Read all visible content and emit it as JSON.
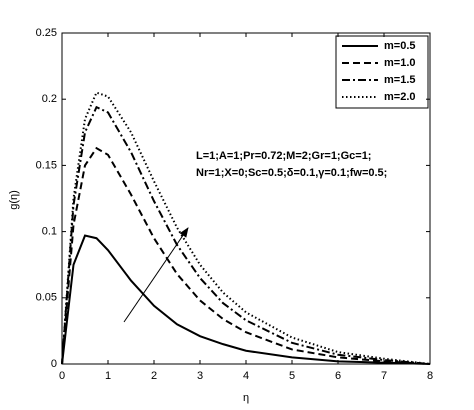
{
  "chart_data": {
    "type": "line",
    "xlabel": "η",
    "ylabel": "g(η)",
    "annotations": [
      "L=1;A=1;Pr=0.72;M=2;Gr=1;Gc=1;",
      "Nr=1;X=0;Sc=0.5;δ=0.1,γ=0.1;fw=0.5;"
    ],
    "x": [
      0,
      0.25,
      0.5,
      0.75,
      1,
      1.5,
      2,
      2.5,
      3,
      3.5,
      4,
      5,
      6,
      7,
      8
    ],
    "series": [
      {
        "name": "m=0.5",
        "color": "#000000",
        "linestyle": "solid",
        "values": [
          0,
          0.075,
          0.097,
          0.095,
          0.086,
          0.063,
          0.044,
          0.03,
          0.021,
          0.015,
          0.01,
          0.005,
          0.002,
          0.001,
          0
        ]
      },
      {
        "name": "m=1.0",
        "color": "#000000",
        "linestyle": "dashed",
        "values": [
          0,
          0.105,
          0.15,
          0.163,
          0.158,
          0.128,
          0.095,
          0.068,
          0.048,
          0.034,
          0.024,
          0.011,
          0.005,
          0.002,
          0
        ]
      },
      {
        "name": "m=1.5",
        "color": "#000000",
        "linestyle": "dashdot",
        "values": [
          0,
          0.12,
          0.175,
          0.194,
          0.19,
          0.16,
          0.123,
          0.09,
          0.065,
          0.046,
          0.033,
          0.016,
          0.007,
          0.003,
          0
        ]
      },
      {
        "name": "m=2.0",
        "color": "#000000",
        "linestyle": "dotted",
        "values": [
          0,
          0.125,
          0.185,
          0.205,
          0.202,
          0.175,
          0.138,
          0.103,
          0.075,
          0.054,
          0.039,
          0.02,
          0.009,
          0.004,
          0
        ]
      }
    ],
    "xlim": [
      0,
      8
    ],
    "xticks": [
      0,
      1,
      2,
      3,
      4,
      5,
      6,
      7,
      8
    ],
    "ylim": [
      0,
      0.25
    ],
    "yticks": [
      0,
      0.05,
      0.1,
      0.15,
      0.2,
      0.25
    ],
    "grid": false,
    "legend": "top-right"
  }
}
